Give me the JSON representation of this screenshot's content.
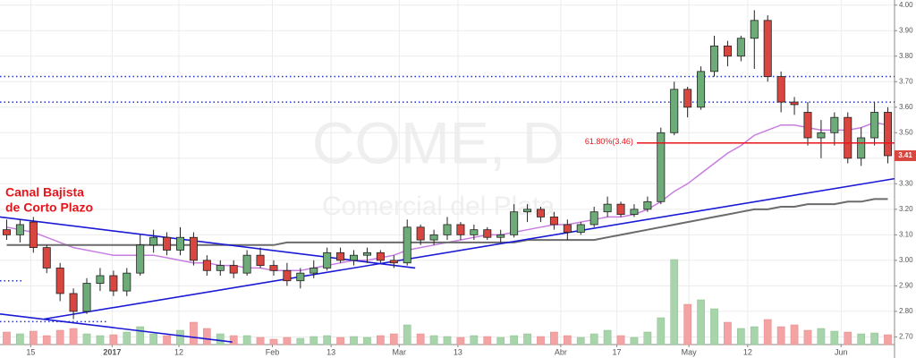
{
  "chart_data": {
    "type": "candlestick",
    "watermark_title": "COME, D",
    "watermark_subtitle": "Comercial del Plata",
    "annotation": [
      "Canal Bajista",
      "de Corto Plazo"
    ],
    "annotation_color": "#e8141b",
    "up_color": "#6dac78",
    "down_color": "#d9453f",
    "volume_up_color": "#a8d4ab",
    "volume_down_color": "#f3a3a3",
    "candles": [
      [
        3.12,
        3.16,
        3.08,
        3.1
      ],
      [
        3.1,
        3.16,
        3.07,
        3.14
      ],
      [
        3.15,
        3.17,
        3.03,
        3.05
      ],
      [
        3.05,
        3.06,
        2.95,
        2.97
      ],
      [
        2.97,
        2.99,
        2.84,
        2.87
      ],
      [
        2.87,
        2.89,
        2.77,
        2.8
      ],
      [
        2.8,
        2.93,
        2.79,
        2.91
      ],
      [
        2.91,
        2.97,
        2.88,
        2.94
      ],
      [
        2.94,
        2.96,
        2.86,
        2.88
      ],
      [
        2.88,
        2.97,
        2.86,
        2.95
      ],
      [
        2.95,
        3.1,
        2.94,
        3.06
      ],
      [
        3.06,
        3.12,
        3.03,
        3.09
      ],
      [
        3.09,
        3.11,
        3.02,
        3.04
      ],
      [
        3.04,
        3.13,
        3.02,
        3.09
      ],
      [
        3.09,
        3.11,
        2.98,
        3.0
      ],
      [
        3.0,
        3.02,
        2.94,
        2.96
      ],
      [
        2.96,
        3.0,
        2.94,
        2.98
      ],
      [
        2.98,
        3.0,
        2.93,
        2.95
      ],
      [
        2.95,
        3.04,
        2.94,
        3.02
      ],
      [
        3.02,
        3.05,
        2.97,
        2.98
      ],
      [
        2.98,
        3.0,
        2.94,
        2.96
      ],
      [
        2.96,
        2.99,
        2.9,
        2.92
      ],
      [
        2.92,
        2.97,
        2.89,
        2.95
      ],
      [
        2.95,
        3.0,
        2.93,
        2.97
      ],
      [
        2.97,
        3.05,
        2.96,
        3.03
      ],
      [
        3.03,
        3.05,
        2.99,
        3.0
      ],
      [
        3.0,
        3.04,
        2.98,
        3.02
      ],
      [
        3.02,
        3.05,
        2.99,
        3.03
      ],
      [
        3.03,
        3.04,
        2.99,
        3.0
      ],
      [
        3.0,
        3.02,
        2.97,
        2.99
      ],
      [
        2.99,
        3.16,
        2.98,
        3.13
      ],
      [
        3.13,
        3.14,
        3.06,
        3.08
      ],
      [
        3.08,
        3.12,
        3.06,
        3.1
      ],
      [
        3.1,
        3.17,
        3.08,
        3.14
      ],
      [
        3.14,
        3.15,
        3.08,
        3.1
      ],
      [
        3.1,
        3.14,
        3.08,
        3.12
      ],
      [
        3.12,
        3.13,
        3.08,
        3.09
      ],
      [
        3.09,
        3.12,
        3.07,
        3.1
      ],
      [
        3.1,
        3.22,
        3.09,
        3.19
      ],
      [
        3.19,
        3.22,
        3.15,
        3.2
      ],
      [
        3.2,
        3.21,
        3.15,
        3.17
      ],
      [
        3.17,
        3.19,
        3.12,
        3.14
      ],
      [
        3.14,
        3.16,
        3.08,
        3.11
      ],
      [
        3.11,
        3.15,
        3.1,
        3.14
      ],
      [
        3.14,
        3.21,
        3.13,
        3.19
      ],
      [
        3.19,
        3.25,
        3.17,
        3.22
      ],
      [
        3.22,
        3.23,
        3.17,
        3.18
      ],
      [
        3.18,
        3.22,
        3.17,
        3.2
      ],
      [
        3.2,
        3.25,
        3.19,
        3.23
      ],
      [
        3.23,
        3.52,
        3.22,
        3.5
      ],
      [
        3.5,
        3.7,
        3.49,
        3.67
      ],
      [
        3.67,
        3.68,
        3.56,
        3.6
      ],
      [
        3.6,
        3.76,
        3.59,
        3.74
      ],
      [
        3.74,
        3.88,
        3.72,
        3.84
      ],
      [
        3.84,
        3.86,
        3.76,
        3.8
      ],
      [
        3.8,
        3.88,
        3.78,
        3.87
      ],
      [
        3.87,
        3.98,
        3.75,
        3.94
      ],
      [
        3.94,
        3.96,
        3.7,
        3.72
      ],
      [
        3.72,
        3.74,
        3.58,
        3.62
      ],
      [
        3.62,
        3.64,
        3.57,
        3.61
      ],
      [
        3.58,
        3.62,
        3.45,
        3.48
      ],
      [
        3.48,
        3.55,
        3.4,
        3.5
      ],
      [
        3.5,
        3.58,
        3.45,
        3.56
      ],
      [
        3.56,
        3.58,
        3.38,
        3.4
      ],
      [
        3.4,
        3.52,
        3.37,
        3.48
      ],
      [
        3.48,
        3.62,
        3.45,
        3.58
      ],
      [
        3.58,
        3.6,
        3.38,
        3.41
      ]
    ],
    "volume": {
      "ylim": [
        0,
        100
      ],
      "values": [
        14,
        12,
        15,
        10,
        16,
        18,
        12,
        10,
        11,
        14,
        20,
        12,
        10,
        16,
        25,
        18,
        12,
        10,
        10,
        8,
        6,
        8,
        7,
        9,
        10,
        8,
        9,
        8,
        10,
        12,
        22,
        12,
        10,
        9,
        8,
        10,
        9,
        8,
        10,
        12,
        9,
        14,
        10,
        8,
        12,
        16,
        10,
        8,
        14,
        30,
        95,
        45,
        50,
        40,
        25,
        18,
        20,
        28,
        20,
        22,
        16,
        18,
        15,
        14,
        12,
        13,
        11
      ]
    },
    "ma": [
      {
        "color": "#c77ee0",
        "values": [
          3.13,
          3.12,
          3.11,
          3.09,
          3.07,
          3.05,
          3.04,
          3.03,
          3.02,
          3.02,
          3.02,
          3.02,
          3.01,
          3.0,
          2.99,
          2.99,
          2.98,
          2.98,
          2.97,
          2.97,
          2.96,
          2.96,
          2.96,
          2.97,
          2.98,
          2.99,
          3.0,
          3.0,
          3.01,
          3.02,
          3.04,
          3.05,
          3.06,
          3.07,
          3.08,
          3.09,
          3.1,
          3.1,
          3.11,
          3.12,
          3.13,
          3.14,
          3.14,
          3.15,
          3.16,
          3.17,
          3.17,
          3.18,
          3.2,
          3.23,
          3.27,
          3.3,
          3.34,
          3.38,
          3.42,
          3.45,
          3.49,
          3.51,
          3.53,
          3.53,
          3.52,
          3.51,
          3.51,
          3.51,
          3.52,
          3.54,
          3.53
        ]
      },
      {
        "color": "#6b6b6b",
        "values": [
          3.06,
          3.06,
          3.06,
          3.06,
          3.06,
          3.06,
          3.06,
          3.06,
          3.06,
          3.06,
          3.06,
          3.06,
          3.06,
          3.06,
          3.06,
          3.06,
          3.06,
          3.06,
          3.06,
          3.06,
          3.06,
          3.07,
          3.07,
          3.07,
          3.07,
          3.07,
          3.07,
          3.07,
          3.07,
          3.07,
          3.07,
          3.07,
          3.07,
          3.07,
          3.07,
          3.07,
          3.07,
          3.07,
          3.07,
          3.08,
          3.08,
          3.08,
          3.08,
          3.08,
          3.08,
          3.09,
          3.1,
          3.11,
          3.12,
          3.13,
          3.14,
          3.15,
          3.16,
          3.17,
          3.18,
          3.19,
          3.2,
          3.2,
          3.21,
          3.21,
          3.22,
          3.22,
          3.22,
          3.23,
          3.23,
          3.24,
          3.24
        ]
      }
    ],
    "levels": [
      {
        "value": 3.72,
        "color": "#2433d6",
        "from": 0,
        "to": 67
      },
      {
        "value": 3.62,
        "color": "#2433d6",
        "from": 0,
        "to": 67
      },
      {
        "value": 2.92,
        "color": "#2433d6",
        "from": 0,
        "to": 1.7
      },
      {
        "value": 2.76,
        "color": "#2433d6",
        "from": 0,
        "to": 8
      }
    ],
    "fib": {
      "label": "61.80%(3.46)",
      "value": 3.46,
      "from": 47.7,
      "to": 67,
      "color": "#e8141b"
    },
    "trendlines": [
      {
        "color": "#1a1ad6",
        "points": [
          [
            0,
            3.17
          ],
          [
            31.1,
            2.97
          ]
        ]
      },
      {
        "color": "#1a1ad6",
        "points": [
          [
            3.3,
            2.77
          ],
          [
            67,
            3.32
          ]
        ]
      },
      {
        "color": "#1a1ad6",
        "points": [
          [
            0,
            2.79
          ],
          [
            17.4,
            2.68
          ]
        ]
      }
    ],
    "xlim": [
      0,
      67
    ],
    "xticks": [
      {
        "value": 2.3,
        "label": "15"
      },
      {
        "value": 8.4,
        "label": "2017"
      },
      {
        "value": 13.4,
        "label": "12"
      },
      {
        "value": 20.4,
        "label": "Feb"
      },
      {
        "value": 24.8,
        "label": "13"
      },
      {
        "value": 29.9,
        "label": "Mar"
      },
      {
        "value": 34.3,
        "label": "13"
      },
      {
        "value": 42,
        "label": "Abr"
      },
      {
        "value": 46.2,
        "label": "17"
      },
      {
        "value": 51.6,
        "label": "May"
      },
      {
        "value": 56,
        "label": "12"
      },
      {
        "value": 63,
        "label": "Jun"
      }
    ],
    "ylim": [
      2.67,
      4.02
    ],
    "yticks": [
      {
        "value": 2.7,
        "label": "2.70"
      },
      {
        "value": 2.8,
        "label": "2.80"
      },
      {
        "value": 2.9,
        "label": "2.90"
      },
      {
        "value": 3,
        "label": "3.00"
      },
      {
        "value": 3.1,
        "label": "3.10"
      },
      {
        "value": 3.2,
        "label": "3.20"
      },
      {
        "value": 3.3,
        "label": "3.30"
      },
      {
        "value": 3.4,
        "label": "3.40"
      },
      {
        "value": 3.5,
        "label": "3.50"
      },
      {
        "value": 3.6,
        "label": "3.60"
      },
      {
        "value": 3.7,
        "label": "3.70"
      },
      {
        "value": 3.8,
        "label": "3.80"
      },
      {
        "value": 3.9,
        "label": "3.90"
      },
      {
        "value": 4,
        "label": "4.00"
      }
    ],
    "grid": true
  }
}
